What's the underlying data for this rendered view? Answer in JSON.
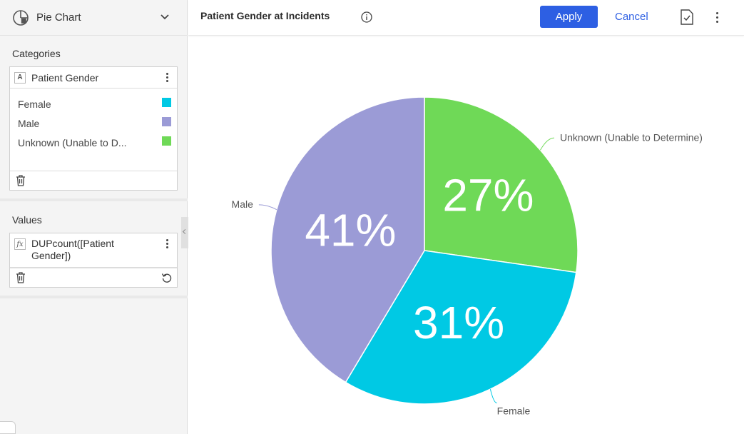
{
  "sidebar": {
    "chart_type": {
      "label": "Pie Chart",
      "icon": "pie-chart-icon"
    },
    "categories": {
      "title": "Categories",
      "field": {
        "type_badge": "A",
        "label": "Patient Gender"
      },
      "legend": [
        {
          "label": "Female",
          "color": "#00c9e4"
        },
        {
          "label": "Male",
          "color": "#9b9bd6"
        },
        {
          "label": "Unknown (Unable to D...",
          "color": "#6fd957"
        }
      ]
    },
    "values": {
      "title": "Values",
      "field": {
        "type_badge": "fx",
        "label": "DUPcount([Patient Gender])"
      }
    }
  },
  "header": {
    "title": "Patient Gender at Incidents",
    "apply_label": "Apply",
    "cancel_label": "Cancel",
    "accent_color": "#2d5fe3"
  },
  "chart_data": {
    "type": "pie",
    "title": "Patient Gender at Incidents",
    "slices": [
      {
        "label": "Unknown (Unable to Determine)",
        "value": 27,
        "display": "27%",
        "color": "#6fd957"
      },
      {
        "label": "Female",
        "value": 31,
        "display": "31%",
        "color": "#00c9e4"
      },
      {
        "label": "Male",
        "value": 41,
        "display": "41%",
        "color": "#9b9bd6"
      }
    ]
  }
}
